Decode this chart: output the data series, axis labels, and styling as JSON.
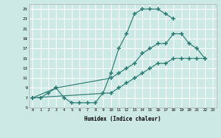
{
  "xlabel": "Humidex (Indice chaleur)",
  "bg_color": "#cce9e5",
  "grid_color": "#ffffff",
  "line_color": "#2d7d72",
  "xlim": [
    -0.5,
    23.5
  ],
  "ylim": [
    5,
    26
  ],
  "xticks": [
    0,
    1,
    2,
    3,
    4,
    5,
    6,
    7,
    8,
    9,
    10,
    11,
    12,
    13,
    14,
    15,
    16,
    17,
    18,
    19,
    20,
    21,
    22,
    23
  ],
  "yticks": [
    5,
    7,
    9,
    11,
    13,
    15,
    17,
    19,
    21,
    23,
    25
  ],
  "curve1_x": [
    0,
    1,
    2,
    3,
    4,
    5,
    6,
    7,
    8,
    9,
    10,
    11,
    12,
    13,
    14,
    15,
    16,
    17,
    18
  ],
  "curve1_y": [
    7,
    7,
    8,
    9,
    7,
    6,
    6,
    6,
    6,
    8,
    12,
    17,
    20,
    24,
    25,
    25,
    25,
    24,
    23
  ],
  "curve2_x": [
    0,
    3,
    10,
    11,
    12,
    13,
    14,
    15,
    16,
    17,
    18,
    19,
    20,
    21,
    22
  ],
  "curve2_y": [
    7,
    9,
    11,
    12,
    13,
    14,
    16,
    17,
    18,
    18,
    20,
    20,
    18,
    17,
    15
  ],
  "curve3_x": [
    0,
    10,
    11,
    12,
    13,
    14,
    15,
    16,
    17,
    18,
    19,
    20,
    21,
    22
  ],
  "curve3_y": [
    7,
    8,
    9,
    10,
    11,
    12,
    13,
    14,
    14,
    15,
    15,
    15,
    15,
    15
  ]
}
